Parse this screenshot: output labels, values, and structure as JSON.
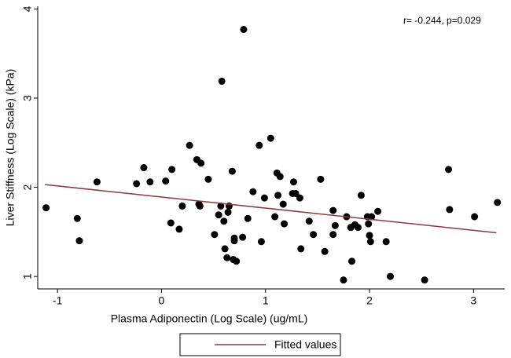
{
  "chart_data": {
    "type": "scatter",
    "xlabel": "Plasma Adiponectin (Log Scale) (ug/mL)",
    "ylabel": "Liver Stiffness (Log Scale) (kPa)",
    "annotation": "r= -0.244, p=0.029",
    "color": "#000000",
    "x": [
      -1.11,
      -0.81,
      -0.79,
      -0.62,
      -0.24,
      -0.17,
      -0.11,
      0.04,
      0.1,
      0.09,
      0.17,
      0.2,
      0.27,
      0.34,
      0.38,
      0.36,
      0.37,
      0.45,
      0.51,
      0.55,
      0.57,
      0.58,
      0.6,
      0.61,
      0.63,
      0.64,
      0.65,
      0.68,
      0.69,
      0.7,
      0.72,
      0.7,
      0.78,
      0.79,
      0.83,
      0.88,
      0.94,
      0.96,
      0.99,
      1.05,
      1.09,
      1.11,
      1.12,
      1.14,
      1.17,
      1.18,
      1.26,
      1.27,
      1.29,
      1.33,
      1.34,
      1.42,
      1.46,
      1.53,
      1.57,
      1.65,
      1.65,
      1.67,
      1.75,
      1.78,
      1.82,
      1.83,
      1.86,
      1.89,
      1.92,
      1.98,
      1.99,
      2.0,
      2.01,
      2.02,
      2.08,
      2.16,
      2.2,
      2.53,
      2.76,
      2.77,
      3.01,
      3.23
    ],
    "values": [
      1.77,
      1.65,
      1.4,
      2.06,
      2.04,
      2.22,
      2.06,
      2.07,
      2.2,
      1.6,
      1.53,
      1.79,
      2.47,
      2.31,
      2.27,
      1.81,
      1.79,
      2.09,
      1.47,
      1.69,
      1.79,
      3.19,
      1.62,
      1.31,
      1.21,
      1.72,
      1.79,
      2.18,
      1.19,
      1.4,
      1.17,
      1.43,
      1.44,
      3.77,
      1.65,
      1.95,
      2.47,
      1.39,
      1.88,
      2.55,
      1.67,
      2.16,
      1.91,
      2.12,
      1.81,
      1.59,
      1.93,
      2.06,
      1.93,
      1.88,
      1.31,
      1.62,
      1.47,
      2.09,
      1.28,
      1.47,
      1.74,
      1.57,
      0.96,
      1.67,
      1.55,
      1.17,
      1.58,
      1.55,
      1.91,
      1.67,
      1.59,
      1.46,
      1.39,
      1.67,
      1.73,
      1.39,
      1.0,
      0.96,
      2.2,
      1.75,
      1.67,
      1.83
    ],
    "fit": {
      "name": "Fitted values",
      "color": "#8b3a3a",
      "x": [
        -1.12,
        3.22
      ],
      "values": [
        2.03,
        1.49
      ]
    },
    "xlim": [
      -1.19,
      3.3
    ],
    "ylim": [
      0.86,
      4.03
    ],
    "xticks": [
      -1,
      0,
      1,
      2,
      3
    ],
    "yticks": [
      1,
      2,
      3,
      4
    ],
    "grid": false,
    "legend": "bottom"
  }
}
